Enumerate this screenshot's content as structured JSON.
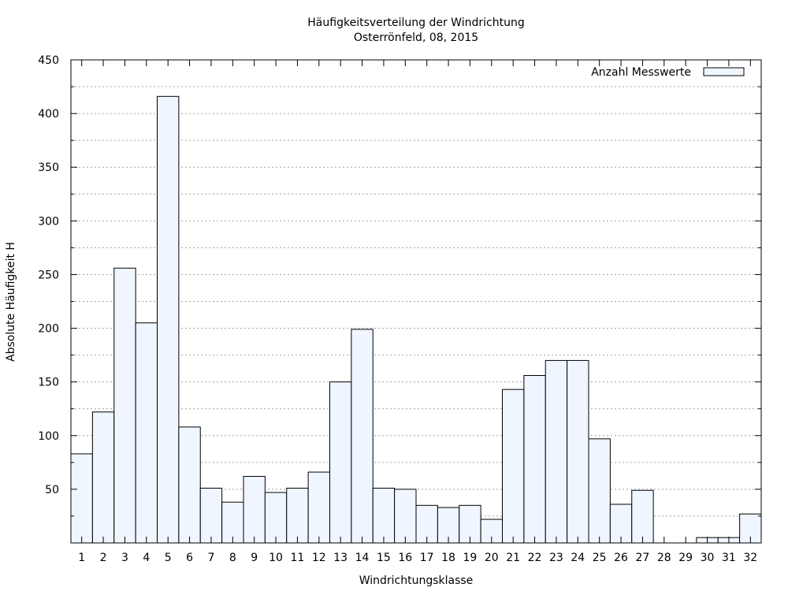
{
  "chart_data": {
    "type": "bar",
    "title": "Häufigkeitsverteilung der Windrichtung",
    "subtitle": "Osterrönfeld, 08, 2015",
    "xlabel": "Windrichtungsklasse",
    "ylabel": "Absolute Häufigkeit H",
    "ylim": [
      0,
      450
    ],
    "yticks": [
      50,
      100,
      150,
      200,
      250,
      300,
      350,
      400,
      450
    ],
    "grid": true,
    "legend_position": "top-right",
    "categories": [
      "1",
      "2",
      "3",
      "4",
      "5",
      "6",
      "7",
      "8",
      "9",
      "10",
      "11",
      "12",
      "13",
      "14",
      "15",
      "16",
      "17",
      "18",
      "19",
      "20",
      "21",
      "22",
      "23",
      "24",
      "25",
      "26",
      "27",
      "28",
      "29",
      "30",
      "31",
      "32"
    ],
    "series": [
      {
        "name": "Anzahl Messwerte",
        "values": [
          83,
          122,
          256,
          205,
          416,
          108,
          51,
          38,
          62,
          47,
          51,
          66,
          150,
          199,
          51,
          50,
          35,
          33,
          35,
          22,
          143,
          156,
          170,
          170,
          97,
          36,
          49,
          0,
          0,
          5,
          5,
          27
        ],
        "color": "#eff6ff"
      }
    ]
  }
}
